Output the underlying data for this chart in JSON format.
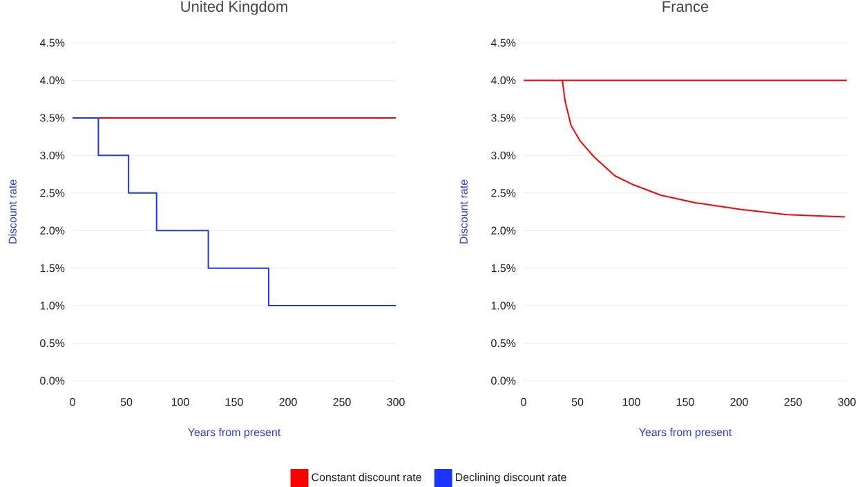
{
  "chart_data": [
    {
      "type": "line",
      "title": "United Kingdom",
      "xlabel": "Years from present",
      "ylabel": "Discount rate",
      "xlim": [
        0,
        300
      ],
      "xticks": [
        0,
        50,
        100,
        150,
        200,
        250,
        300
      ],
      "ylim": [
        0,
        4.5
      ],
      "yticks": [
        {
          "value": 0,
          "label": "0.0%"
        },
        {
          "value": 0.5,
          "label": "0.5%"
        },
        {
          "value": 1,
          "label": "1.0%"
        },
        {
          "value": 1.5,
          "label": "1.5%"
        },
        {
          "value": 2,
          "label": "2.0%"
        },
        {
          "value": 2.5,
          "label": "2.5%"
        },
        {
          "value": 3,
          "label": "3.0%"
        },
        {
          "value": 3.5,
          "label": "3.5%"
        },
        {
          "value": 4,
          "label": "4.0%"
        },
        {
          "value": 4.5,
          "label": "4.5%"
        }
      ],
      "grid": "y",
      "legend": "bottom",
      "series": [
        {
          "name": "Constant discount rate",
          "color": "#ff0000",
          "x": [
            0,
            300
          ],
          "values": [
            3.5,
            3.5
          ]
        },
        {
          "name": "Declining discount rate",
          "type": "step",
          "color": "#1a35ff",
          "x": [
            0,
            24,
            52,
            78,
            126,
            182,
            300
          ],
          "values": [
            3.5,
            3.0,
            2.5,
            2.0,
            1.5,
            1.0,
            1.0
          ]
        }
      ]
    },
    {
      "type": "line",
      "title": "France",
      "xlabel": "Years from present",
      "ylabel": "Discount rate",
      "xlim": [
        0,
        300
      ],
      "xticks": [
        0,
        50,
        100,
        150,
        200,
        250,
        300
      ],
      "ylim": [
        0,
        4.5
      ],
      "yticks": [
        {
          "value": 0,
          "label": "0.0%"
        },
        {
          "value": 0.5,
          "label": "0.5%"
        },
        {
          "value": 1,
          "label": "1.0%"
        },
        {
          "value": 1.5,
          "label": "1.5%"
        },
        {
          "value": 2,
          "label": "2.0%"
        },
        {
          "value": 2.5,
          "label": "2.5%"
        },
        {
          "value": 3,
          "label": "3.0%"
        },
        {
          "value": 3.5,
          "label": "3.5%"
        },
        {
          "value": 4,
          "label": "4.0%"
        },
        {
          "value": 4.5,
          "label": "4.5%"
        }
      ],
      "grid": "y",
      "series": [
        {
          "color": "#ff0000",
          "x": [
            0,
            300
          ],
          "values": [
            4.0,
            4.0
          ]
        },
        {
          "color": "#ff0000",
          "x": [
            36,
            37.2,
            38.7,
            44,
            52.6,
            65.4,
            84.6,
            101.7,
            127.4,
            159.4,
            202.2,
            245,
            298.3
          ],
          "values": [
            4.0,
            3.86,
            3.71,
            3.4,
            3.19,
            2.98,
            2.73,
            2.61,
            2.47,
            2.37,
            2.28,
            2.21,
            2.18
          ]
        }
      ]
    }
  ]
}
